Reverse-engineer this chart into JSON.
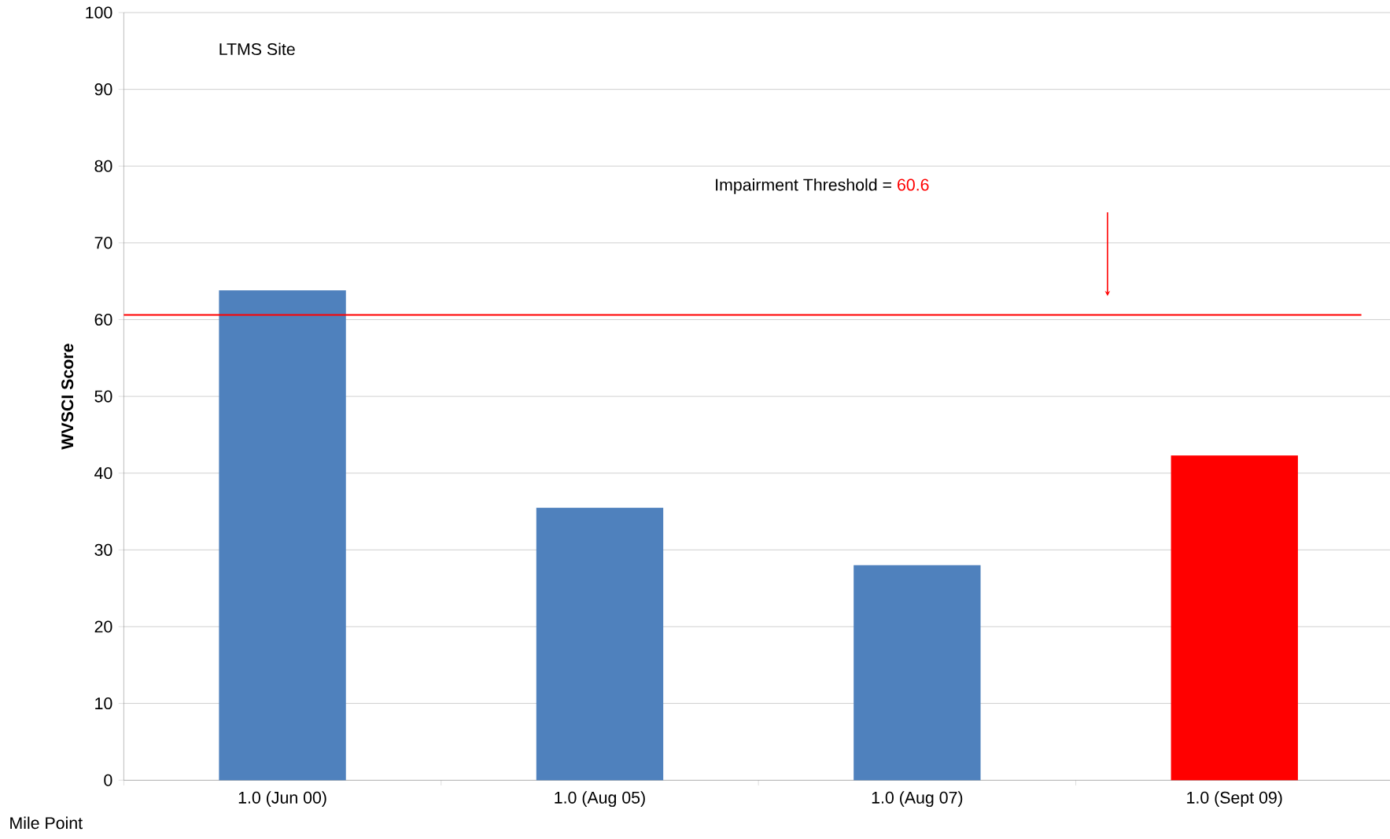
{
  "chart_data": {
    "type": "bar",
    "title": "LTMS Site",
    "xlabel": "Mile Point",
    "ylabel": "WVSCI Score",
    "categories": [
      "1.0 (Jun 00)",
      "1.0 (Aug 05)",
      "1.0 (Aug 07)",
      "1.0 (Sept 09)"
    ],
    "values": [
      63.8,
      35.5,
      28.0,
      42.3
    ],
    "colors": [
      "#4f81bd",
      "#4f81bd",
      "#4f81bd",
      "#ff0000"
    ],
    "ylim": [
      0,
      100
    ],
    "yticks": [
      0,
      10,
      20,
      30,
      40,
      50,
      60,
      70,
      80,
      90,
      100
    ],
    "grid": "y",
    "ref_lines": [
      {
        "axis": "y",
        "value": 60.6,
        "label": "60.6",
        "color": "#ff0000"
      }
    ],
    "annotations": [
      "Impairment Threshold ="
    ]
  }
}
